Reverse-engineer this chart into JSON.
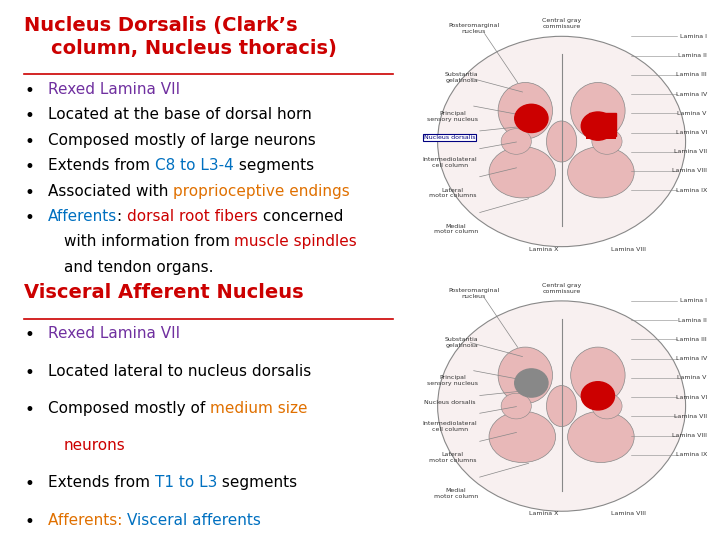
{
  "bg_color": "#ffffff",
  "border_color": "#8B0000",
  "image_border_color": "#4472c4",
  "section1_title": "Nucleus Dorsalis (Clark’s\n    column, Nucleus thoracis)",
  "section1_title_color": "#cc0000",
  "section2_title": "Visceral Afferent Nucleus",
  "section2_title_color": "#cc0000",
  "font_size_title1": 14,
  "font_size_title2": 14,
  "font_size_bullet": 11,
  "section1_bullets": [
    [
      {
        "text": "Rexed Lamina VII",
        "color": "#7030a0"
      }
    ],
    [
      {
        "text": "Located at the base of dorsal horn",
        "color": "#000000"
      }
    ],
    [
      {
        "text": "Composed mostly of large neurons",
        "color": "#000000"
      }
    ],
    [
      {
        "text": "Extends from ",
        "color": "#000000"
      },
      {
        "text": "C8 to L3-4",
        "color": "#0070c0"
      },
      {
        "text": " segments",
        "color": "#000000"
      }
    ],
    [
      {
        "text": "Associated with ",
        "color": "#000000"
      },
      {
        "text": "proprioceptive endings",
        "color": "#e07000"
      }
    ],
    [
      {
        "text": "Afferents",
        "color": "#0070c0"
      },
      {
        "text": ": ",
        "color": "#000000"
      },
      {
        "text": "dorsal root fibers",
        "color": "#cc0000"
      },
      {
        "text": " concerned",
        "color": "#000000"
      }
    ],
    [
      {
        "text": "with information from ",
        "color": "#000000"
      },
      {
        "text": "muscle spindles",
        "color": "#cc0000"
      }
    ],
    [
      {
        "text": "and tendon organs.",
        "color": "#000000"
      }
    ]
  ],
  "section2_bullets": [
    [
      {
        "text": "Rexed Lamina VII",
        "color": "#7030a0"
      }
    ],
    [
      {
        "text": "Located lateral to nucleus dorsalis",
        "color": "#000000"
      }
    ],
    [
      {
        "text": "Composed mostly of ",
        "color": "#000000"
      },
      {
        "text": "medium size",
        "color": "#e07000"
      }
    ],
    [
      {
        "text": "neurons",
        "color": "#cc0000"
      }
    ],
    [
      {
        "text": "Extends from ",
        "color": "#000000"
      },
      {
        "text": "T1 to L3",
        "color": "#0070c0"
      },
      {
        "text": " segments",
        "color": "#000000"
      }
    ],
    [
      {
        "text": "Afferents: ",
        "color": "#e07000"
      },
      {
        "text": "Visceral afferents",
        "color": "#0070c0"
      }
    ]
  ],
  "s1_bullet_indent": [
    false,
    false,
    false,
    false,
    false,
    false,
    true,
    true
  ],
  "s2_bullet_indent": [
    false,
    false,
    false,
    true,
    false,
    false
  ]
}
